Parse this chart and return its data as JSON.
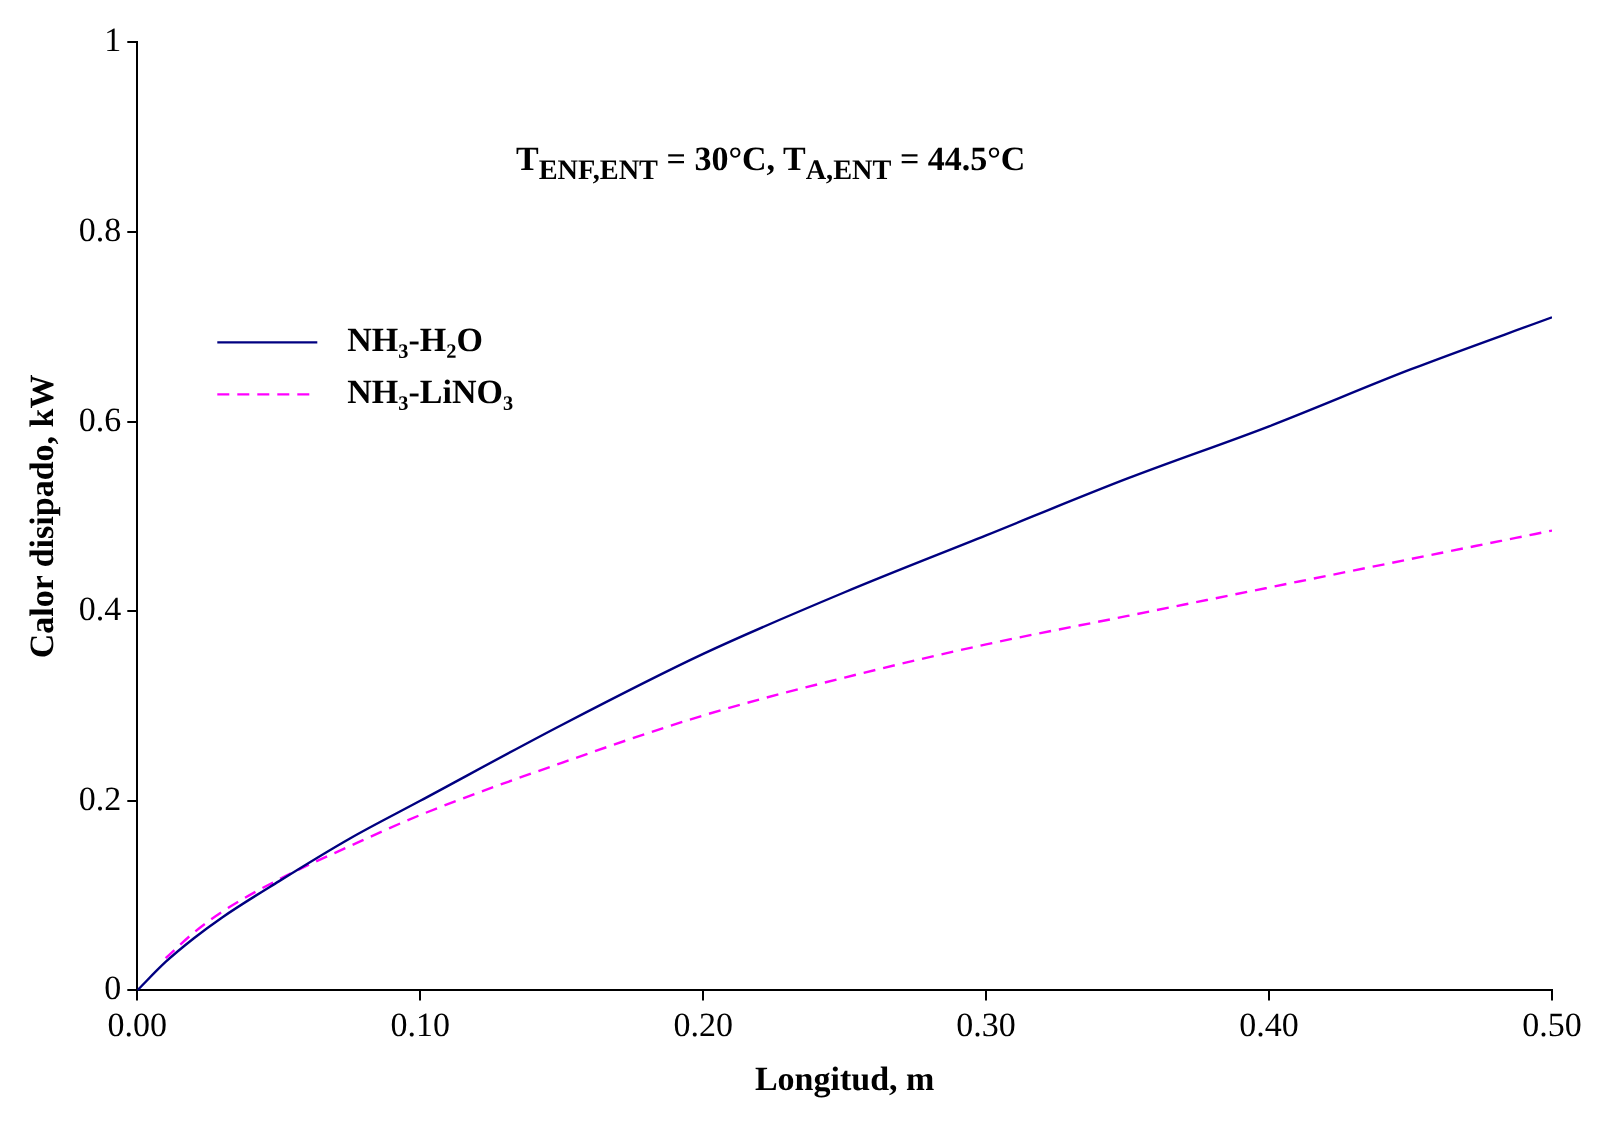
{
  "chart_data": {
    "type": "line",
    "xlabel": "Longitud, m",
    "ylabel": "Calor disipado, kW",
    "annotations": [
      "T$_{ENF,ENT}$ = 30°C, T$_{A,ENT}$ = 44.5°C"
    ],
    "x": [
      0,
      0.01,
      0.02,
      0.03,
      0.05,
      0.075,
      0.1,
      0.15,
      0.2,
      0.25,
      0.3,
      0.35,
      0.4,
      0.45,
      0.5
    ],
    "series": [
      {
        "name": "NH₃-H₂O",
        "color": "#000080",
        "line_style": "solid",
        "values": [
          0,
          0.03,
          0.055,
          0.077,
          0.115,
          0.16,
          0.2,
          0.28,
          0.355,
          0.42,
          0.48,
          0.54,
          0.595,
          0.655,
          0.71
        ]
      },
      {
        "name": "NH₃-LiNO₃",
        "color": "#ff00ff",
        "line_style": "dashed",
        "x": [
          0.01,
          0.02,
          0.03,
          0.05,
          0.075,
          0.1,
          0.15,
          0.2,
          0.25,
          0.3,
          0.35,
          0.4,
          0.45,
          0.5
        ],
        "values": [
          0.034,
          0.061,
          0.083,
          0.117,
          0.152,
          0.185,
          0.24,
          0.29,
          0.33,
          0.365,
          0.395,
          0.425,
          0.455,
          0.485
        ]
      }
    ],
    "xlim": [
      0,
      0.5
    ],
    "xticks": [
      {
        "value": 0,
        "label": "0.00"
      },
      {
        "value": 0.1,
        "label": "0.10"
      },
      {
        "value": 0.2,
        "label": "0.20"
      },
      {
        "value": 0.3,
        "label": "0.30"
      },
      {
        "value": 0.4,
        "label": "0.40"
      },
      {
        "value": 0.5,
        "label": "0.50"
      }
    ],
    "ylim": [
      0,
      1
    ],
    "yticks": [
      0,
      0.2,
      0.4,
      0.6,
      0.8,
      1
    ],
    "grid": false,
    "legend": "top left",
    "marker": "none"
  }
}
